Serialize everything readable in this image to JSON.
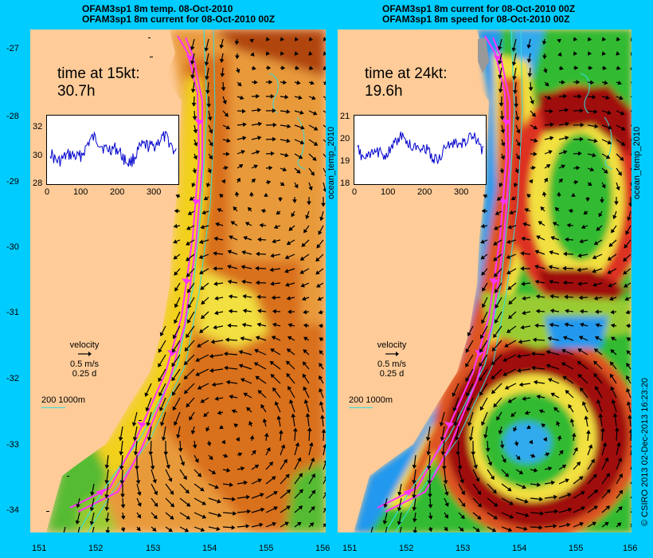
{
  "left_panel": {
    "title_line1": "OFAM3sp1 8m temp. 08-Oct-2010",
    "title_line2": "OFAM3sp1 8m current for 08-Oct-2010 00Z",
    "time_label": "time at 15kt:",
    "time_value": "30.7h",
    "inset_y_ticks": [
      "32",
      "30",
      "28"
    ],
    "inset_x_ticks": [
      "0",
      "100",
      "200",
      "300"
    ],
    "side_label": "ocean_temp_2010"
  },
  "right_panel": {
    "title_line1": "OFAM3sp1 8m current for 08-Oct-2010 00Z",
    "title_line2": "OFAM3sp1 8m speed for 08-Oct-2010 00Z",
    "time_label": "time at 24kt:",
    "time_value": "19.6h",
    "inset_y_ticks": [
      "21",
      "20",
      "19",
      "18"
    ],
    "inset_x_ticks": [
      "0",
      "100",
      "200",
      "300"
    ],
    "side_label": "ocean_temp_2010"
  },
  "velocity_legend": {
    "title": "velocity",
    "speed": "0.5 m/s",
    "duration": "0.25 d"
  },
  "isobath_legend": "200  1000m",
  "credit": "© CSIRO 2013   02-Dec-2013 16:23:20",
  "lat_ticks": [
    "-27",
    "-28",
    "-29",
    "-30",
    "-31",
    "-32",
    "-33",
    "-34"
  ],
  "lon_ticks": [
    "151",
    "152",
    "153",
    "154",
    "155",
    "156"
  ],
  "colors": {
    "background": "#00ccff",
    "land": "#ffcc99",
    "route": "#ff33ff",
    "isobath": "#33dddd"
  }
}
